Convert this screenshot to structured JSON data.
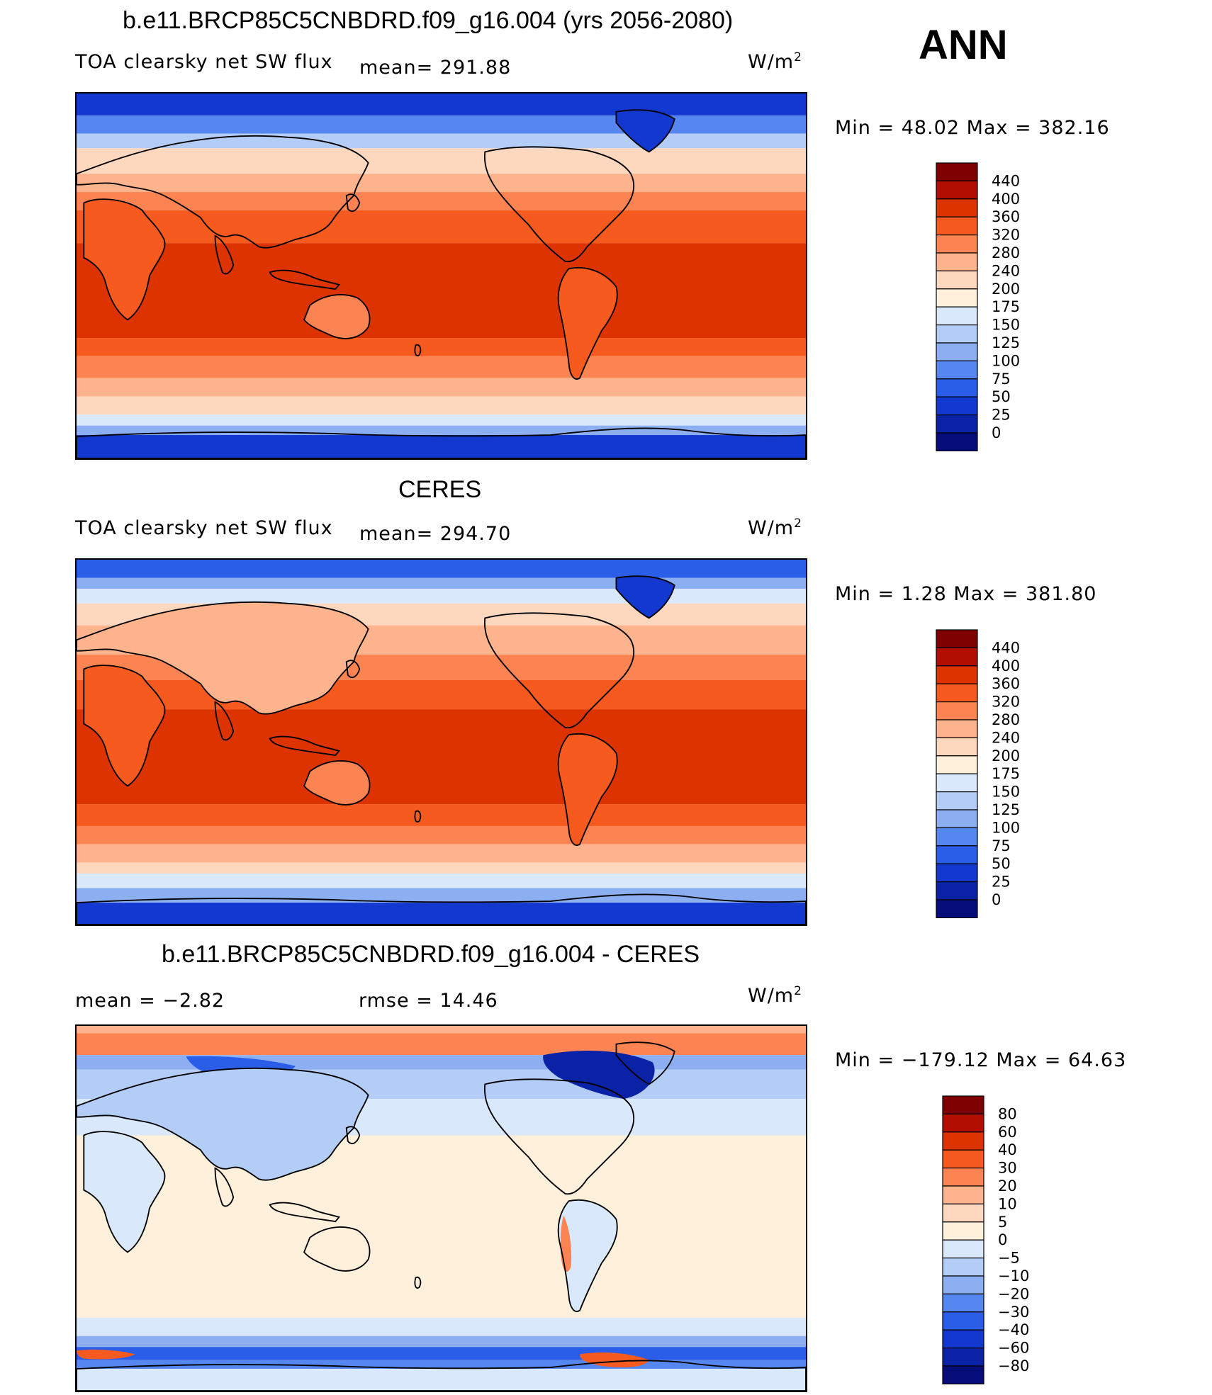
{
  "season": "ANN",
  "panels": [
    {
      "id": "model",
      "title": "b.e11.BRCP85C5CNBDRD.f09_g16.004 (yrs 2056-2080)",
      "variable": "TOA clearsky net SW flux",
      "mean_text": "mean= 291.88",
      "units_base": "W/m",
      "units_exp": "2",
      "minmax_text": "Min =   48.02  Max  =  382.16",
      "colorbar_levels": [
        "440",
        "400",
        "360",
        "320",
        "280",
        "240",
        "200",
        "175",
        "150",
        "125",
        "100",
        "75",
        "50",
        "25",
        "0"
      ],
      "colorbar_colors": [
        "#7f0000",
        "#b30f00",
        "#dd3300",
        "#f65a1e",
        "#fb8452",
        "#fdb38c",
        "#fed7bf",
        "#fff0dc",
        "#d9e9fb",
        "#b3cdf6",
        "#8caff2",
        "#5686ef",
        "#2b5ee8",
        "#1238cf",
        "#0a22a6",
        "#060c7a"
      ]
    },
    {
      "id": "obs",
      "title": "CERES",
      "variable": "TOA clearsky net SW flux",
      "mean_text": "mean= 294.70",
      "units_base": "W/m",
      "units_exp": "2",
      "minmax_text": "Min =     1.28  Max  =  381.80",
      "colorbar_levels": [
        "440",
        "400",
        "360",
        "320",
        "280",
        "240",
        "200",
        "175",
        "150",
        "125",
        "100",
        "75",
        "50",
        "25",
        "0"
      ],
      "colorbar_colors": [
        "#7f0000",
        "#b30f00",
        "#dd3300",
        "#f65a1e",
        "#fb8452",
        "#fdb38c",
        "#fed7bf",
        "#fff0dc",
        "#d9e9fb",
        "#b3cdf6",
        "#8caff2",
        "#5686ef",
        "#2b5ee8",
        "#1238cf",
        "#0a22a6",
        "#060c7a"
      ]
    },
    {
      "id": "diff",
      "title": "b.e11.BRCP85C5CNBDRD.f09_g16.004 - CERES",
      "mean_text": "mean =    −2.82",
      "rmse_text": "rmse =    14.46",
      "units_base": "W/m",
      "units_exp": "2",
      "minmax_text": "Min  = −179.12  Max  =    64.63",
      "colorbar_levels": [
        "80",
        "60",
        "40",
        "30",
        "20",
        "10",
        "5",
        "0",
        "−5",
        "−10",
        "−20",
        "−30",
        "−40",
        "−60",
        "−80"
      ],
      "colorbar_colors": [
        "#7f0000",
        "#b30f00",
        "#dd3300",
        "#f65a1e",
        "#fb8452",
        "#fdb38c",
        "#fed7bf",
        "#fff0dc",
        "#d9e9fb",
        "#b3cdf6",
        "#8caff2",
        "#5686ef",
        "#2b5ee8",
        "#1238cf",
        "#0a22a6",
        "#060c7a"
      ]
    }
  ]
}
